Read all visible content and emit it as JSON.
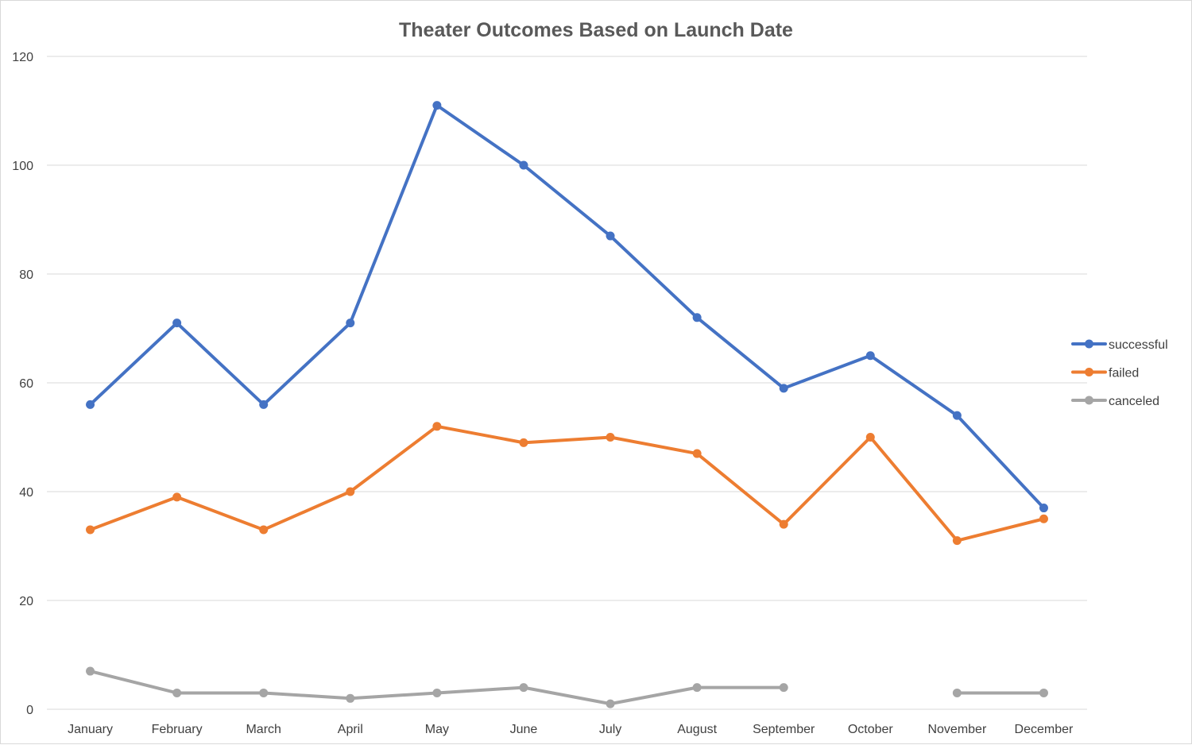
{
  "chart_data": {
    "type": "line",
    "title": "Theater Outcomes Based on Launch Date",
    "categories": [
      "January",
      "February",
      "March",
      "April",
      "May",
      "June",
      "July",
      "August",
      "September",
      "October",
      "November",
      "December"
    ],
    "ylim": [
      0,
      120
    ],
    "yticks": [
      0,
      20,
      40,
      60,
      80,
      100,
      120
    ],
    "grid": true,
    "legend_position": "right",
    "series": [
      {
        "name": "successful",
        "color": "#4472C4",
        "values": [
          56,
          71,
          56,
          71,
          111,
          100,
          87,
          72,
          59,
          65,
          54,
          37
        ]
      },
      {
        "name": "failed",
        "color": "#ED7D31",
        "values": [
          33,
          39,
          33,
          40,
          52,
          49,
          50,
          47,
          34,
          50,
          31,
          35
        ]
      },
      {
        "name": "canceled",
        "color": "#A5A5A5",
        "values": [
          7,
          3,
          3,
          2,
          3,
          4,
          1,
          4,
          4,
          null,
          3,
          3
        ]
      }
    ]
  }
}
